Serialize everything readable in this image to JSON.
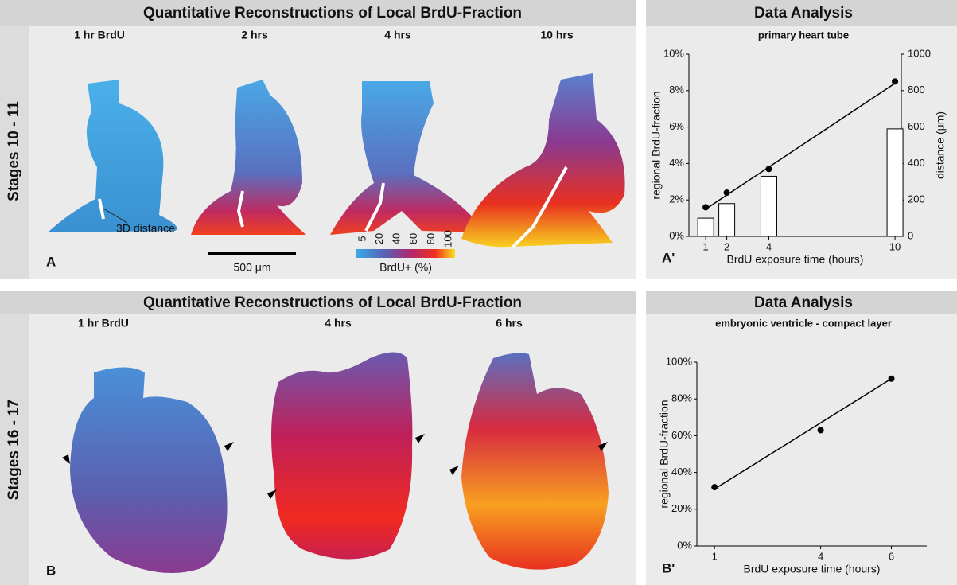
{
  "top": {
    "title": "Quantitative Reconstructions of Local BrdU-Fraction",
    "row_label": "Stages 10 - 11",
    "columns": [
      "1 hr BrdU",
      "2 hrs",
      "4 hrs",
      "10 hrs"
    ],
    "annotation": "3D distance",
    "scale_bar": "500 μm",
    "colorbar": {
      "ticks": [
        "5",
        "20",
        "40",
        "60",
        "80",
        "100"
      ],
      "label": "BrdU+ (%)"
    },
    "panel": "A"
  },
  "bottom": {
    "title": "Quantitative Reconstructions of Local BrdU-Fraction",
    "row_label": "Stages 16 - 17",
    "columns": [
      "1 hr BrdU",
      "4 hrs",
      "6 hrs"
    ],
    "panel": "B"
  },
  "chart_data": [
    {
      "type": "combo",
      "title": "Data Analysis",
      "subtitle": "primary heart tube",
      "panel": "A'",
      "xlabel": "BrdU exposure time (hours)",
      "ylabel": "regional BrdU-fraction",
      "y2label": "distance (μm)",
      "x": [
        1,
        2,
        4,
        10
      ],
      "xlim": [
        0.2,
        10.3
      ],
      "xticks": [
        1,
        2,
        4,
        10
      ],
      "ylim": [
        0,
        10
      ],
      "yticks": [
        {
          "value": 0,
          "label": "0%"
        },
        {
          "value": 2,
          "label": "2%"
        },
        {
          "value": 4,
          "label": "4%"
        },
        {
          "value": 6,
          "label": "6%"
        },
        {
          "value": 8,
          "label": "8%"
        },
        {
          "value": 10,
          "label": "10%"
        }
      ],
      "y2lim": [
        0,
        1000
      ],
      "y2ticks": [
        0,
        200,
        400,
        600,
        800,
        1000
      ],
      "series": [
        {
          "type": "bar",
          "axis": "y2",
          "color": "#ffffff",
          "values": [
            100,
            180,
            330,
            590
          ]
        },
        {
          "type": "scatter",
          "color": "#000000",
          "values": [
            1.6,
            2.4,
            3.7,
            8.5
          ]
        }
      ],
      "fit": {
        "x": [
          1,
          10
        ],
        "values": [
          1.5,
          8.4
        ]
      }
    },
    {
      "type": "combo",
      "title": "Data Analysis",
      "subtitle": "embryonic ventricle - compact layer",
      "panel": "B'",
      "xlabel": "BrdU exposure time (hours)",
      "ylabel": "regional BrdU-fraction",
      "x": [
        1,
        4,
        6
      ],
      "xlim": [
        0.5,
        7
      ],
      "xticks": [
        1,
        4,
        6
      ],
      "ylim": [
        0,
        100
      ],
      "yticks": [
        {
          "value": 0,
          "label": "0%"
        },
        {
          "value": 20,
          "label": "20%"
        },
        {
          "value": 40,
          "label": "40%"
        },
        {
          "value": 60,
          "label": "60%"
        },
        {
          "value": 80,
          "label": "80%"
        },
        {
          "value": 100,
          "label": "100%"
        }
      ],
      "series": [
        {
          "type": "scatter",
          "color": "#000000",
          "values": [
            32,
            63,
            91
          ]
        }
      ],
      "fit": {
        "x": [
          1,
          6
        ],
        "values": [
          31,
          91
        ]
      }
    }
  ]
}
